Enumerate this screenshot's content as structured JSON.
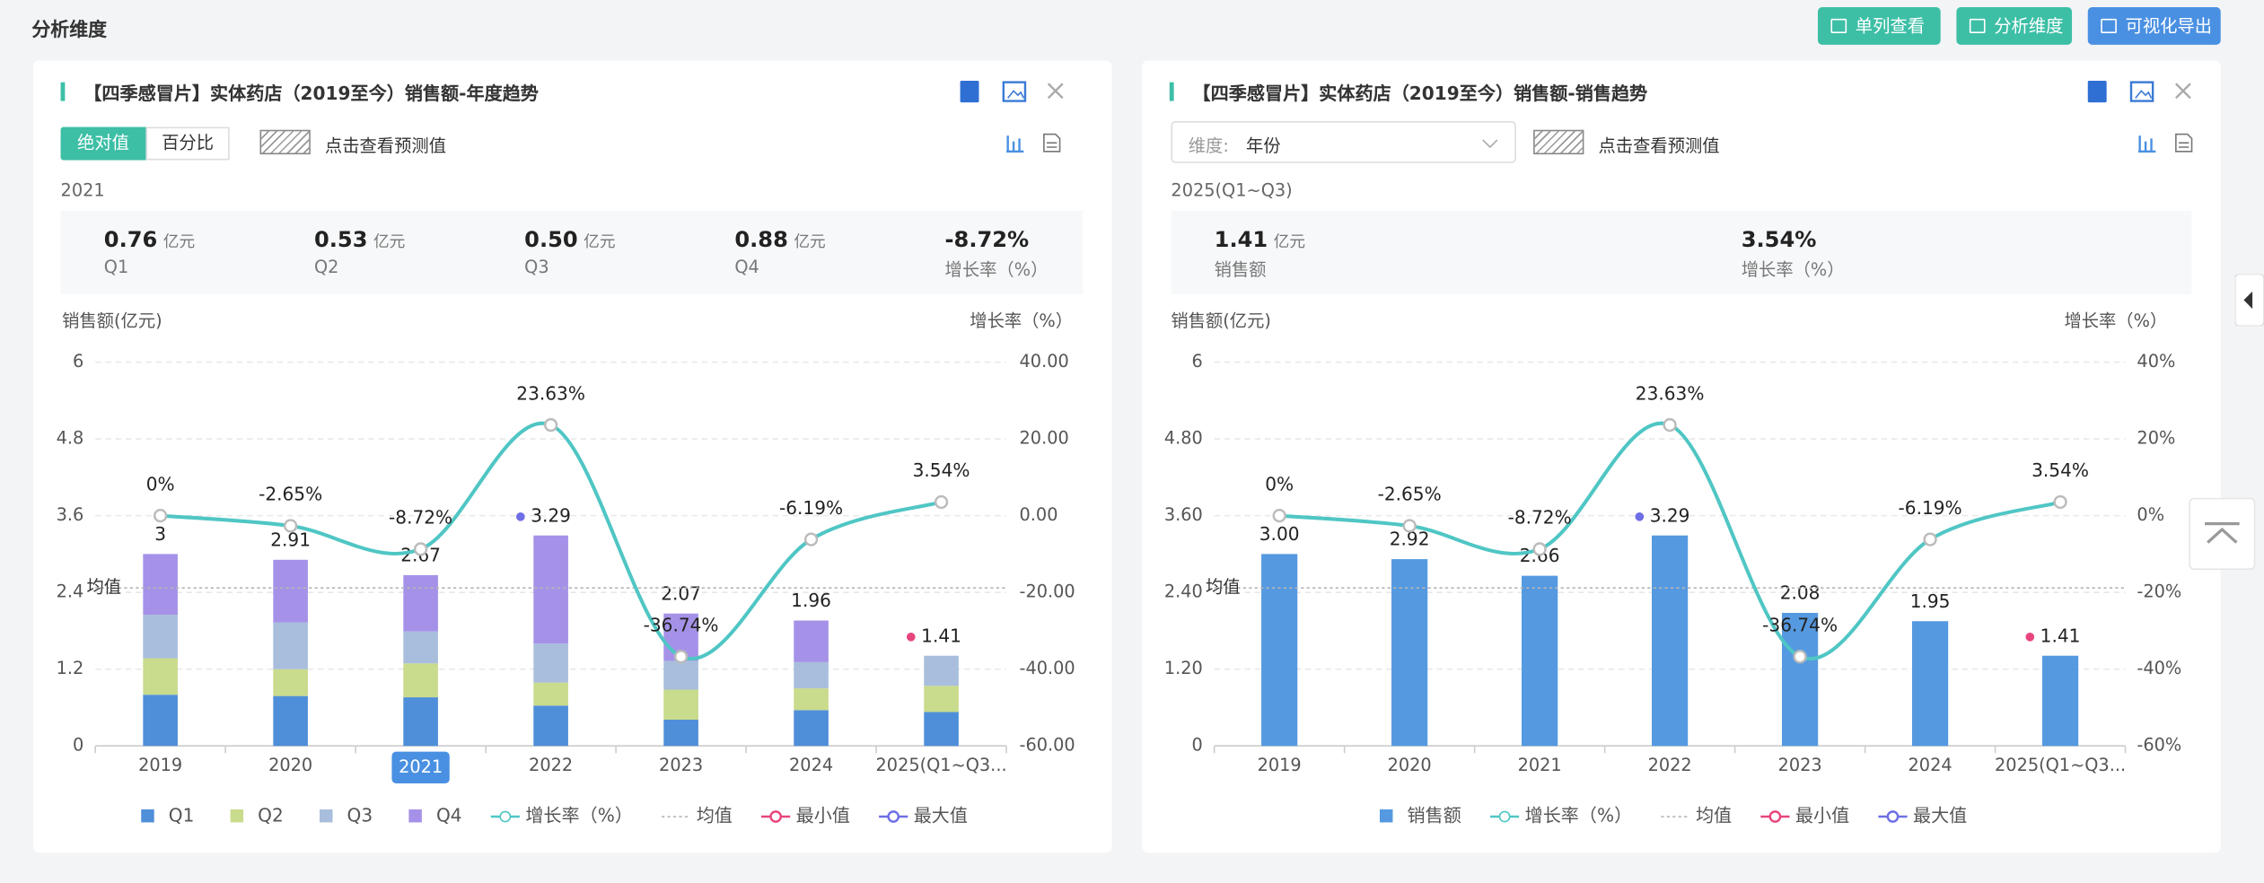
{
  "header": {
    "title": "分析维度",
    "buttons": [
      "单列查看",
      "分析维度",
      "可视化导出"
    ]
  },
  "panels": [
    {
      "title": "【四季感冒片】实体药店（2019至今）销售额-年度趋势",
      "tabs": [
        "绝对值",
        "百分比"
      ],
      "forecast": "点击查看预测值",
      "period": "2021",
      "summary": [
        {
          "value": "0.76",
          "unit": "亿元",
          "label": "Q1"
        },
        {
          "value": "0.53",
          "unit": "亿元",
          "label": "Q2"
        },
        {
          "value": "0.50",
          "unit": "亿元",
          "label": "Q3"
        },
        {
          "value": "0.88",
          "unit": "亿元",
          "label": "Q4"
        },
        {
          "value": "-8.72%",
          "label": "增长率（%）"
        }
      ]
    },
    {
      "title": "【四季感冒片】实体药店（2019至今）销售额-销售趋势",
      "dimension_label": "维度:",
      "dimension_value": "年份",
      "forecast": "点击查看预测值",
      "period": "2025(Q1~Q3)",
      "summary": [
        {
          "value": "1.41",
          "unit": "亿元",
          "label": "销售额"
        },
        {
          "value": "3.54%",
          "label": "增长率（%）"
        }
      ]
    }
  ],
  "chart_data": [
    {
      "type": "bar",
      "stacked": true,
      "y_label": "销售额(亿元)",
      "y2_label": "增长率（%）",
      "categories": [
        "2019",
        "2020",
        "2021",
        "2022",
        "2023",
        "2024",
        "2025(Q1~Q3..."
      ],
      "series": [
        {
          "name": "Q1",
          "color": "#4f8fd9",
          "values": [
            0.8,
            0.78,
            0.76,
            0.63,
            0.41,
            0.56,
            0.53
          ]
        },
        {
          "name": "Q2",
          "color": "#c9db8c",
          "values": [
            0.57,
            0.42,
            0.53,
            0.36,
            0.47,
            0.34,
            0.41
          ]
        },
        {
          "name": "Q3",
          "color": "#a8bedc",
          "values": [
            0.68,
            0.73,
            0.5,
            0.61,
            0.45,
            0.41,
            0.47
          ]
        },
        {
          "name": "Q4",
          "color": "#a592e8",
          "values": [
            0.95,
            0.98,
            0.88,
            1.69,
            0.74,
            0.65,
            null
          ]
        },
        {
          "name": "增长率（%）",
          "type": "line",
          "axis": "y2",
          "color": "#4fc6c4",
          "values": [
            0,
            -2.65,
            -8.72,
            23.63,
            -36.74,
            -6.19,
            3.54
          ],
          "value_labels": [
            "0%",
            "-2.65%",
            "-8.72%",
            "23.63%",
            "-36.74%",
            "-6.19%",
            "3.54%"
          ]
        }
      ],
      "totals": [
        3,
        2.91,
        2.67,
        3.29,
        2.07,
        1.96,
        1.41
      ],
      "ylim": [
        0,
        6
      ],
      "yticks": [
        0,
        1.2,
        2.4,
        3.6,
        4.8,
        6
      ],
      "y2lim": [
        -60,
        40
      ],
      "y2ticks": [
        {
          "value": -60,
          "label": "-60.00"
        },
        {
          "value": -40,
          "label": "-40.00"
        },
        {
          "value": -20,
          "label": "-20.00"
        },
        {
          "value": 0,
          "label": "0.00"
        },
        {
          "value": 20,
          "label": "20.00"
        },
        {
          "value": 40,
          "label": "40.00"
        }
      ],
      "grid": true,
      "mean": {
        "label": "均值",
        "value": 2.47,
        "color": "#b5b5b5"
      },
      "min": {
        "label": "最小值",
        "color": "#e8457f"
      },
      "max": {
        "label": "最大值",
        "color": "#6e6ee6"
      }
    },
    {
      "type": "bar",
      "stacked": false,
      "y_label": "销售额(亿元)",
      "y2_label": "增长率（%）",
      "categories": [
        "2019",
        "2020",
        "2021",
        "2022",
        "2023",
        "2024",
        "2025(Q1~Q3..."
      ],
      "series": [
        {
          "name": "销售额",
          "color": "#5599e0",
          "values": [
            3,
            2.92,
            2.66,
            3.29,
            2.08,
            1.95,
            1.41
          ],
          "value_labels": [
            "3.00",
            "2.92",
            "2.66",
            "3.29",
            "2.08",
            "1.95",
            "1.41"
          ]
        },
        {
          "name": "增长率（%）",
          "type": "line",
          "axis": "y2",
          "color": "#4fc6c4",
          "values": [
            0,
            -2.65,
            -8.72,
            23.63,
            -36.74,
            -6.19,
            3.54
          ],
          "value_labels": [
            "0%",
            "-2.65%",
            "-8.72%",
            "23.63%",
            "-36.74%",
            "-6.19%",
            "3.54%"
          ]
        }
      ],
      "ylim": [
        0,
        6
      ],
      "yticks": [
        0,
        {
          "value": 1.2,
          "label": "1.20"
        },
        {
          "value": 2.4,
          "label": "2.40"
        },
        {
          "value": 3.6,
          "label": "3.60"
        },
        {
          "value": 4.8,
          "label": "4.80"
        },
        6
      ],
      "y2lim": [
        -60,
        40
      ],
      "y2ticks": [
        {
          "value": -60,
          "label": "-60%"
        },
        {
          "value": -40,
          "label": "-40%"
        },
        {
          "value": -20,
          "label": "-20%"
        },
        {
          "value": 0,
          "label": "0%"
        },
        {
          "value": 20,
          "label": "20%"
        },
        {
          "value": 40,
          "label": "40%"
        }
      ],
      "grid": true,
      "mean": {
        "label": "均值",
        "value": 2.47,
        "color": "#b5b5b5"
      },
      "min": {
        "label": "最小值",
        "color": "#e8457f"
      },
      "max": {
        "label": "最大值",
        "color": "#6e6ee6"
      }
    }
  ]
}
